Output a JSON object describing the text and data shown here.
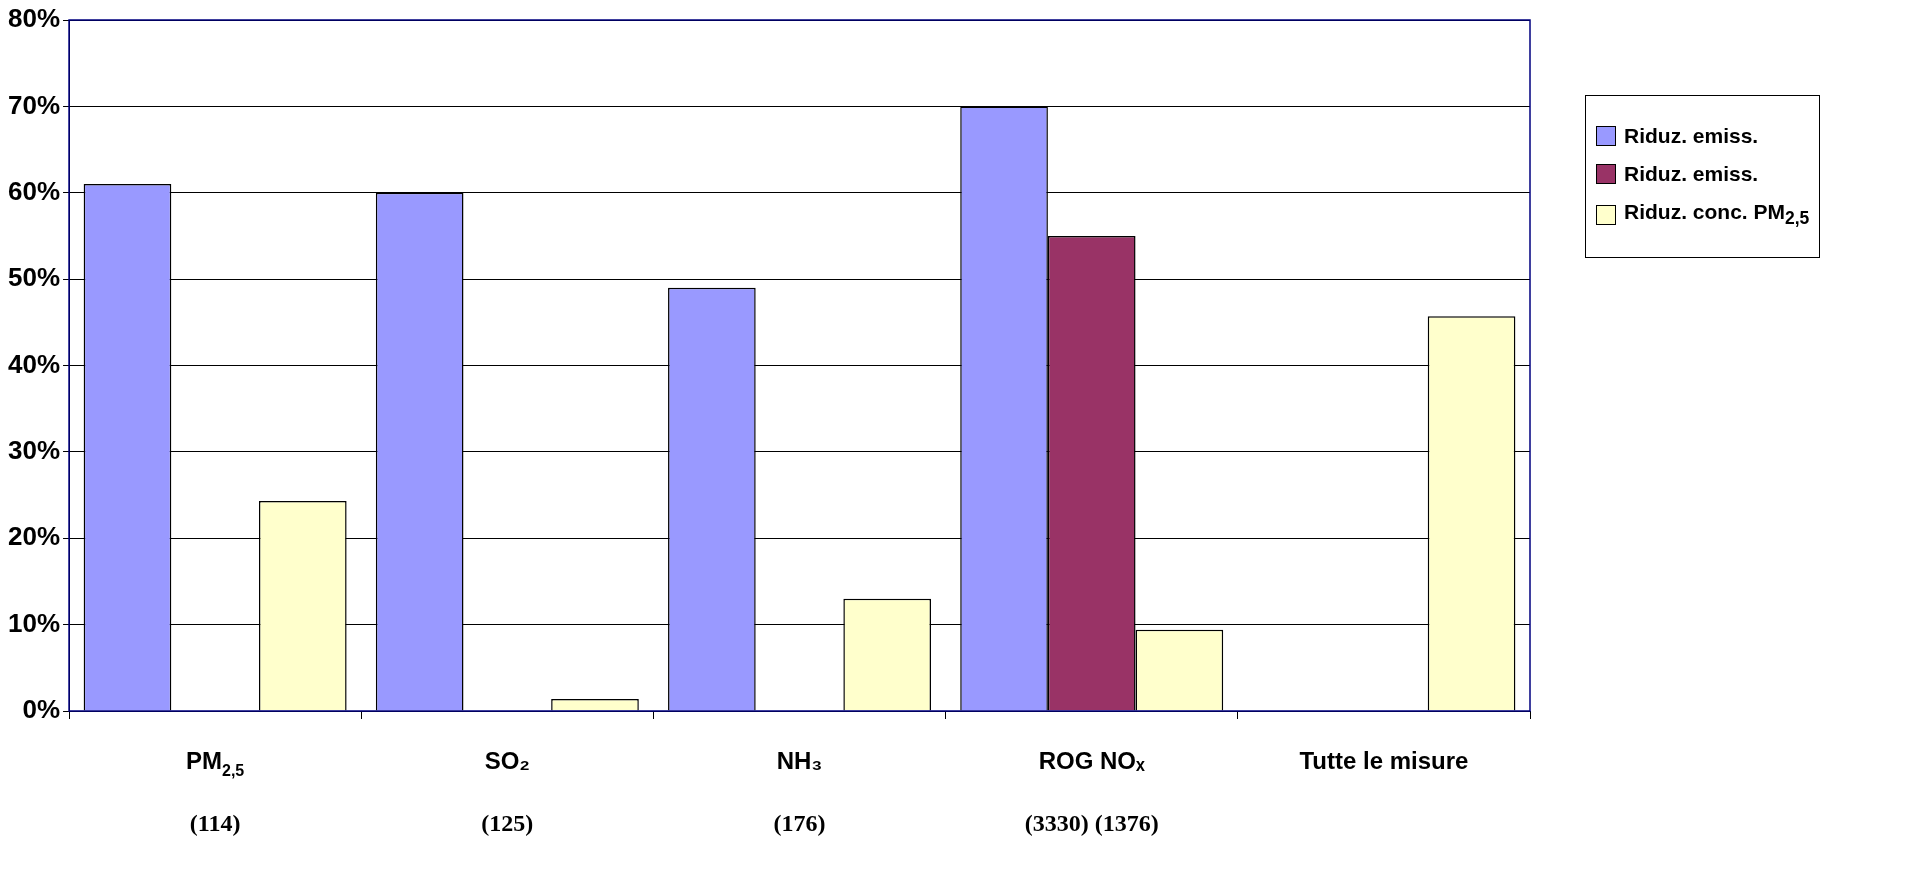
{
  "chart_data": {
    "type": "bar",
    "categories": [
      "PM$_{2,5}$\n(114)",
      "SO₂\n(125)",
      "NH₃\n(176)",
      "ROG NOₓ\n(3330) (1376)",
      "Tutte le misure"
    ],
    "series": [
      {
        "name": "Riduz. emiss.",
        "color": "#9999ff",
        "values": [
          61,
          60,
          49,
          70,
          null
        ]
      },
      {
        "name": "Riduz. emiss.",
        "color": "#993366",
        "values": [
          null,
          null,
          null,
          55,
          null
        ]
      },
      {
        "name": "Riduz. conc. PM$_{2,5}$",
        "color": "#ffffcc",
        "values": [
          24.3,
          1.4,
          13,
          9.4,
          45.7
        ]
      }
    ],
    "ylim": [
      0,
      80
    ],
    "yticks": [
      {
        "value": 0,
        "label": "0%"
      },
      {
        "value": 10,
        "label": "10%"
      },
      {
        "value": 20,
        "label": "20%"
      },
      {
        "value": 30,
        "label": "30%"
      },
      {
        "value": 40,
        "label": "40%"
      },
      {
        "value": 50,
        "label": "50%"
      },
      {
        "value": 60,
        "label": "60%"
      },
      {
        "value": 70,
        "label": "70%"
      },
      {
        "value": 80,
        "label": "80%"
      }
    ],
    "grid": "y",
    "legend": "right"
  }
}
